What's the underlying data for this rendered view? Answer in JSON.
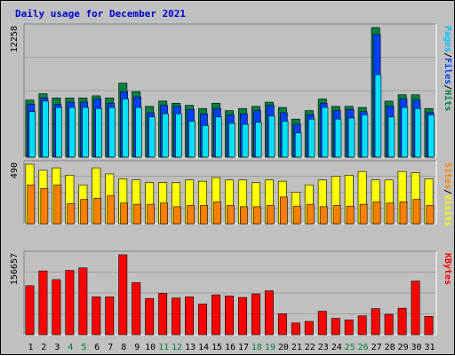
{
  "chart_data": {
    "type": "bar",
    "title": "Daily usage for December 2021",
    "categories": [
      "1",
      "2",
      "3",
      "4",
      "5",
      "6",
      "7",
      "8",
      "9",
      "10",
      "11",
      "12",
      "13",
      "14",
      "15",
      "16",
      "17",
      "18",
      "19",
      "20",
      "21",
      "22",
      "23",
      "24",
      "25",
      "26",
      "27",
      "28",
      "29",
      "30",
      "31"
    ],
    "weekend_days": [
      "4",
      "5",
      "11",
      "12",
      "18",
      "19",
      "25",
      "26"
    ],
    "colors": {
      "hits": "#008040",
      "files": "#0040ff",
      "pages": "#00e0ff",
      "visits": "#ffff00",
      "sites": "#ff8000",
      "kbytes": "#ff0000",
      "weekday_label": "#000000",
      "weekend_label": "#008040"
    },
    "panels": [
      {
        "ymax_label": "12258",
        "ymax": 12258,
        "side_label": [
          {
            "text": "Pages",
            "color": "#00c0ff"
          },
          {
            "text": "/",
            "color": "#000000"
          },
          {
            "text": "Files",
            "color": "#0040ff"
          },
          {
            "text": "/",
            "color": "#000000"
          },
          {
            "text": "Hits",
            "color": "#008040"
          }
        ],
        "series": [
          {
            "name": "Hits",
            "color": "#008040",
            "values": [
              5400,
              6000,
              5600,
              5600,
              5600,
              5800,
              5600,
              7000,
              6200,
              4800,
              5300,
              5100,
              4900,
              4600,
              5100,
              4400,
              4600,
              4800,
              5200,
              4700,
              3600,
              4400,
              5500,
              4800,
              4800,
              4700,
              12258,
              5300,
              5900,
              5900,
              4600
            ]
          },
          {
            "name": "Files",
            "color": "#0040ff",
            "values": [
              5000,
              5600,
              5000,
              5200,
              5200,
              5500,
              5100,
              6200,
              5700,
              4200,
              4900,
              4800,
              4500,
              4100,
              4600,
              4000,
              4100,
              4400,
              4900,
              4200,
              3100,
              4000,
              5100,
              4400,
              4500,
              4300,
              11600,
              4800,
              5500,
              5400,
              4200
            ]
          },
          {
            "name": "Pages",
            "color": "#00e0ff",
            "values": [
              4300,
              5300,
              4700,
              4700,
              4700,
              4600,
              4700,
              5500,
              4700,
              3800,
              4100,
              4100,
              3400,
              3000,
              3800,
              3200,
              3100,
              3300,
              3900,
              3400,
              2300,
              3600,
              4700,
              3600,
              3700,
              4000,
              7800,
              3800,
              4700,
              4600,
              4000
            ]
          }
        ]
      },
      {
        "ymax_label": "490",
        "ymax": 490,
        "side_label": [
          {
            "text": "Sites",
            "color": "#ff8000"
          },
          {
            "text": "/",
            "color": "#000000"
          },
          {
            "text": "Visits",
            "color": "#ffff00"
          }
        ],
        "series": [
          {
            "name": "Visits",
            "color": "#ffff00",
            "values": [
              490,
              440,
              460,
              400,
              320,
              460,
              410,
              370,
              360,
              340,
              340,
              340,
              360,
              350,
              380,
              360,
              360,
              340,
              360,
              350,
              260,
              320,
              360,
              390,
              400,
              430,
              360,
              360,
              430,
              420,
              370
            ]
          },
          {
            "name": "Sites",
            "color": "#ff8000",
            "values": [
              320,
              290,
              320,
              165,
              200,
              210,
              230,
              170,
              160,
              160,
              170,
              140,
              150,
              150,
              180,
              150,
              140,
              140,
              150,
              220,
              145,
              160,
              140,
              150,
              145,
              160,
              180,
              170,
              180,
              200,
              150
            ]
          }
        ]
      },
      {
        "ymax_label": "156657",
        "ymax": 156657,
        "side_label": [
          {
            "text": "KBytes",
            "color": "#ff0000"
          }
        ],
        "series": [
          {
            "name": "KBytes",
            "color": "#ff0000",
            "values": [
              96000,
              125000,
              108000,
              126000,
              131000,
              74000,
              74000,
              156657,
              102000,
              71000,
              81000,
              72000,
              74000,
              60000,
              78000,
              76000,
              73000,
              80000,
              86000,
              41000,
              23000,
              26000,
              46000,
              32000,
              29000,
              37000,
              51000,
              40000,
              52000,
              105000,
              36000
            ]
          }
        ]
      }
    ]
  }
}
